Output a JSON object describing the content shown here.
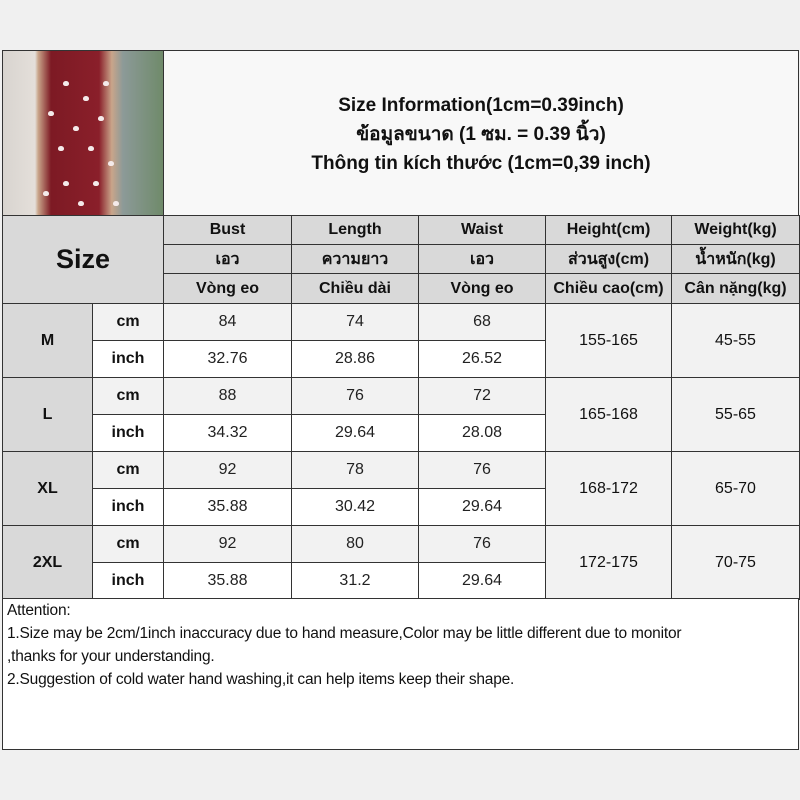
{
  "title": {
    "line1": "Size Information(1cm=0.39inch)",
    "line2": "ข้อมูลขนาด (1 ซม. = 0.39 นิ้ว)",
    "line3": "Thông tin kích thước (1cm=0,39 inch)"
  },
  "size_header": "Size",
  "columns": [
    {
      "en": "Bust",
      "th": "เอว",
      "vi": "Vòng eo"
    },
    {
      "en": "Length",
      "th": "ความยาว",
      "vi": "Chiều dài"
    },
    {
      "en": "Waist",
      "th": "เอว",
      "vi": "Vòng eo"
    },
    {
      "en": "Height(cm)",
      "th": "ส่วนสูง(cm)",
      "vi": "Chiều cao(cm)"
    },
    {
      "en": "Weight(kg)",
      "th": "น้ำหนัก(kg)",
      "vi": "Cân nặng(kg)"
    }
  ],
  "units": {
    "cm": "cm",
    "inch": "inch"
  },
  "sizes": [
    {
      "size": "M",
      "cm": [
        "84",
        "74",
        "68"
      ],
      "inch": [
        "32.76",
        "28.86",
        "26.52"
      ],
      "height": "155-165",
      "weight": "45-55"
    },
    {
      "size": "L",
      "cm": [
        "88",
        "76",
        "72"
      ],
      "inch": [
        "34.32",
        "29.64",
        "28.08"
      ],
      "height": "165-168",
      "weight": "55-65"
    },
    {
      "size": "XL",
      "cm": [
        "92",
        "78",
        "76"
      ],
      "inch": [
        "35.88",
        "30.42",
        "29.64"
      ],
      "height": "168-172",
      "weight": "65-70"
    },
    {
      "size": "2XL",
      "cm": [
        "92",
        "80",
        "76"
      ],
      "inch": [
        "35.88",
        "31.2",
        "29.64"
      ],
      "height": "172-175",
      "weight": "70-75"
    }
  ],
  "attention": {
    "heading": "Attention:",
    "line1": "1.Size may be 2cm/1inch inaccuracy due to hand measure,Color may be little different due to monitor",
    "line2": ",thanks for your understanding.",
    "line3": "2.Suggestion of cold water hand washing,it can help items keep their shape."
  },
  "colors": {
    "header_gray": "#d9d9d9",
    "cm_row": "#f2f2f2",
    "dress": "#8a1f2a"
  }
}
